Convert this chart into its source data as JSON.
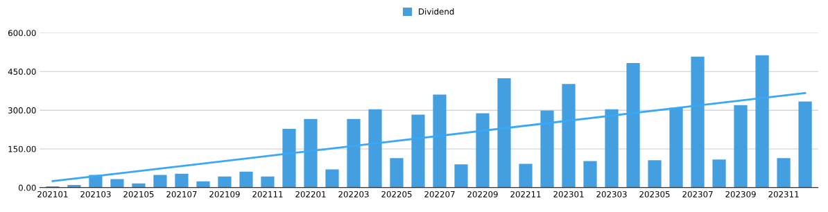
{
  "chart_data": {
    "type": "bar",
    "categories": [
      "202101",
      null,
      "202103",
      null,
      "202105",
      null,
      "202107",
      null,
      "202109",
      null,
      "202111",
      null,
      "202201",
      null,
      "202203",
      null,
      "202205",
      null,
      "202207",
      null,
      "202209",
      null,
      "202211",
      null,
      "202301",
      null,
      "202303",
      null,
      "202305",
      null,
      "202307",
      null,
      "202309",
      null,
      "202311",
      null
    ],
    "series": [
      {
        "name": "Dividend",
        "color": "#449fe0",
        "values": [
          5,
          10,
          49,
          33,
          16,
          49,
          54,
          24,
          43,
          62,
          43,
          228,
          266,
          71,
          266,
          304,
          114,
          283,
          361,
          90,
          288,
          424,
          92,
          299,
          402,
          103,
          304,
          483,
          106,
          310,
          508,
          109,
          320,
          513,
          114,
          334
        ]
      },
      {
        "type": "line",
        "color": "#3aa8f5",
        "values": [
          25,
          null,
          null,
          null,
          null,
          null,
          null,
          null,
          null,
          null,
          null,
          null,
          null,
          null,
          null,
          null,
          null,
          null,
          null,
          null,
          null,
          null,
          null,
          null,
          null,
          null,
          null,
          null,
          null,
          null,
          null,
          null,
          null,
          null,
          null,
          367
        ]
      }
    ],
    "ylim": [
      0,
      600
    ],
    "yticks": [
      {
        "value": 0,
        "label": "0.00"
      },
      {
        "value": 150,
        "label": "150.00"
      },
      {
        "value": 300,
        "label": "300.00"
      },
      {
        "value": 450,
        "label": "450.00"
      },
      {
        "value": 600,
        "label": "600.00"
      }
    ],
    "grid": "y",
    "legend": "top"
  }
}
